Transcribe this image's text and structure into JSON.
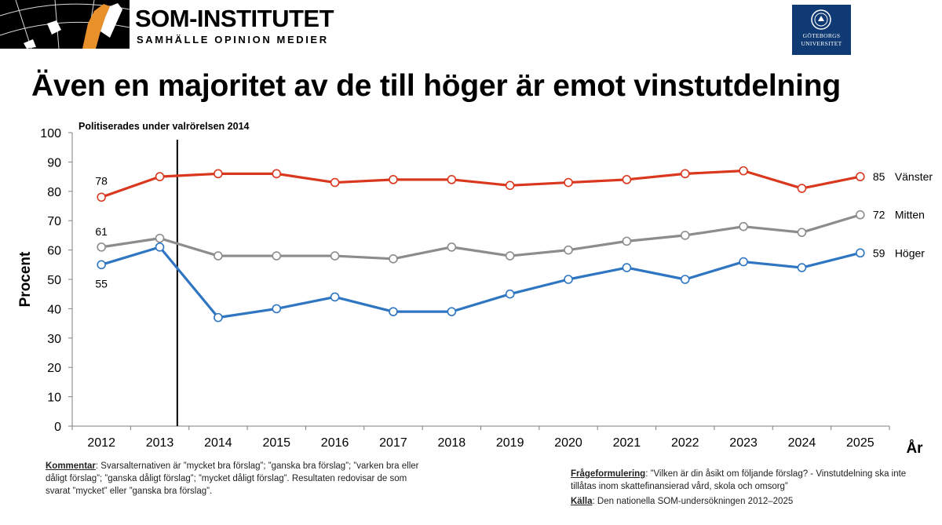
{
  "header": {
    "brand_name": "SOM-INSTITUTET",
    "brand_tagline": "SAMHÄLLE OPINION MEDIER",
    "university_line1": "GÖTEBORGS",
    "university_line2": "UNIVERSITET"
  },
  "slide": {
    "title": "Även en majoritet av de till höger är emot vinstutdelning"
  },
  "colors": {
    "vanster": "#d9381e",
    "mitten": "#8c8c8c",
    "hoger": "#2e75c2",
    "university_blue": "#0f3a73",
    "brand_orange": "#e8902a"
  },
  "chart_data": {
    "type": "line",
    "title": "",
    "xlabel": "År",
    "ylabel": "Procent",
    "ylim": [
      0,
      100
    ],
    "yticks": [
      0,
      10,
      20,
      30,
      40,
      50,
      60,
      70,
      80,
      90,
      100
    ],
    "categories": [
      "2012",
      "2013",
      "2014",
      "2015",
      "2016",
      "2017",
      "2018",
      "2019",
      "2020",
      "2021",
      "2022",
      "2023",
      "2024",
      "2025"
    ],
    "series": [
      {
        "name": "Vänster",
        "color": "#d9381e",
        "values": [
          78,
          85,
          86,
          86,
          83,
          84,
          84,
          82,
          83,
          84,
          86,
          87,
          81,
          85
        ],
        "first_label": "78",
        "end_label": "85"
      },
      {
        "name": "Mitten",
        "color": "#8c8c8c",
        "values": [
          61,
          64,
          58,
          58,
          58,
          57,
          61,
          58,
          60,
          63,
          65,
          68,
          66,
          72
        ],
        "first_label": "61",
        "end_label": "72"
      },
      {
        "name": "Höger",
        "color": "#2e75c2",
        "values": [
          55,
          61,
          37,
          40,
          44,
          39,
          39,
          45,
          50,
          54,
          50,
          56,
          54,
          59
        ],
        "first_label": "55",
        "end_label": "59"
      }
    ],
    "annotation": {
      "text": "Politiserades under valrörelsen 2014",
      "x": 2013.3
    }
  },
  "footer": {
    "comment_label": "Kommentar",
    "comment_text": ": Svarsalternativen är ”mycket bra förslag”; ”ganska bra förslag”; ”varken bra eller dåligt förslag”; ”ganska dåligt förslag”; ”mycket dåligt förslag”. Resultaten redovisar de som svarat ”mycket” eller ”ganska bra förslag”.",
    "question_label": "Frågeformulering",
    "question_text": ": ”Vilken är din åsikt om följande förslag? - Vinstutdelning ska inte tillåtas inom skattefinansierad vård, skola och omsorg”",
    "source_label": "Källa",
    "source_text": ": Den nationella SOM-undersökningen 2012–2025"
  }
}
